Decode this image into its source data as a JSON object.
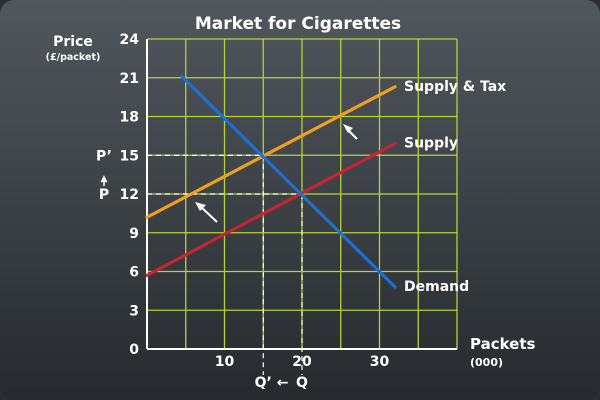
{
  "chart_data": {
    "type": "line",
    "title": "Market for Cigarettes",
    "ylabel": "Price",
    "ylabel_unit": "(£/packet)",
    "xlabel": "Packets",
    "xlabel_unit": "(000)",
    "xlim": [
      0,
      40
    ],
    "ylim": [
      0,
      24
    ],
    "xticks": [
      10,
      20,
      30
    ],
    "yticks": [
      0,
      3,
      6,
      9,
      12,
      15,
      18,
      21,
      24
    ],
    "grid": true,
    "colors": {
      "grid": "#b5d334",
      "demand": "#1f6fd0",
      "supply": "#c42530",
      "supply_tax": "#f0a020"
    },
    "series": [
      {
        "name": "Supply & Tax",
        "x": [
          0,
          32
        ],
        "y": [
          10.2,
          20.3
        ]
      },
      {
        "name": "Supply",
        "x": [
          0,
          32
        ],
        "y": [
          5.7,
          15.9
        ]
      },
      {
        "name": "Demand",
        "x": [
          4.5,
          32
        ],
        "y": [
          21.1,
          4.8
        ]
      }
    ],
    "equilibria": [
      {
        "x": 20,
        "y": 12,
        "x_label": "Q",
        "y_label": "P"
      },
      {
        "x": 15,
        "y": 15,
        "x_label": "Q’",
        "y_label": "P’"
      }
    ],
    "annotations": {
      "y_arrow": "▲",
      "x_arrow": "←"
    }
  }
}
